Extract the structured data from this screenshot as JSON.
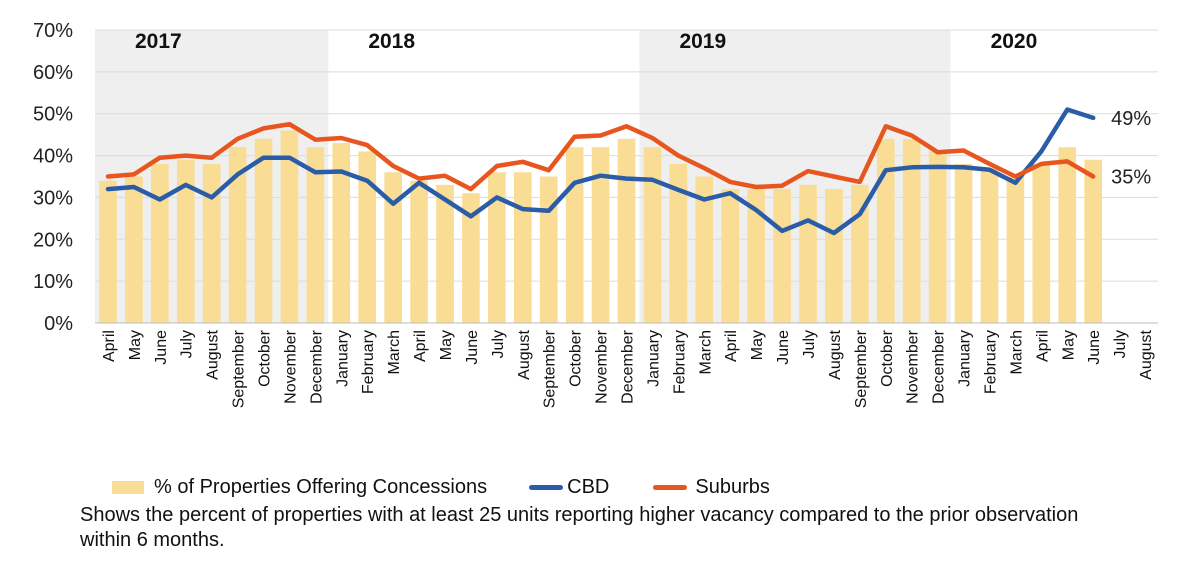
{
  "chart_data": {
    "type": "bar",
    "categories": [
      "April",
      "May",
      "June",
      "July",
      "August",
      "September",
      "October",
      "November",
      "December",
      "January",
      "February",
      "March",
      "April",
      "May",
      "June",
      "July",
      "August",
      "September",
      "October",
      "November",
      "December",
      "January",
      "February",
      "March",
      "April",
      "May",
      "June",
      "July",
      "August",
      "September",
      "October",
      "November",
      "December",
      "January",
      "February",
      "March",
      "April",
      "May",
      "June",
      "July",
      "August"
    ],
    "year_labels": [
      {
        "label": "2017",
        "start_index": 0,
        "end_index": 8,
        "shaded": true
      },
      {
        "label": "2018",
        "start_index": 9,
        "end_index": 20,
        "shaded": false
      },
      {
        "label": "2019",
        "start_index": 21,
        "end_index": 32,
        "shaded": true
      },
      {
        "label": "2020",
        "start_index": 33,
        "end_index": 40,
        "shaded": false
      }
    ],
    "series": [
      {
        "name": "% of Properties Offering Concessions",
        "type": "bar",
        "color": "#f9dd95",
        "values": [
          34,
          35,
          38,
          39,
          38,
          42,
          44,
          46,
          42,
          43,
          41,
          36,
          34,
          33,
          31,
          36,
          36,
          35,
          42,
          42,
          44,
          42,
          38,
          35,
          32,
          32,
          32,
          33,
          32,
          33,
          44,
          44,
          41,
          38,
          37,
          35,
          38,
          42,
          39,
          null,
          null
        ]
      },
      {
        "name": "CBD",
        "type": "line",
        "color": "#2a5ca8",
        "values": [
          32,
          32.5,
          29.5,
          33,
          30,
          35.5,
          39.5,
          39.5,
          36,
          36.2,
          34,
          28.5,
          33.5,
          29.5,
          25.5,
          30,
          27.2,
          26.8,
          33.5,
          35.2,
          34.5,
          34.2,
          31.8,
          29.5,
          31,
          27,
          22,
          24.5,
          21.5,
          26,
          36.5,
          37.2,
          37.3,
          37.2,
          36.6,
          33.5,
          41,
          51,
          49,
          null,
          null
        ]
      },
      {
        "name": "Suburbs",
        "type": "line",
        "color": "#e8561f",
        "values": [
          35,
          35.5,
          39.5,
          40,
          39.5,
          44,
          46.5,
          47.5,
          43.8,
          44.2,
          42.5,
          37.5,
          34.5,
          35.2,
          32,
          37.5,
          38.5,
          36.5,
          44.5,
          44.8,
          47,
          44.2,
          40,
          37,
          33.7,
          32.5,
          32.8,
          36.3,
          35,
          33.7,
          47,
          44.8,
          40.8,
          41.2,
          38,
          35,
          38,
          38.6,
          35,
          null,
          null
        ]
      }
    ],
    "ylim": [
      0,
      70
    ],
    "yticks": [
      0,
      10,
      20,
      30,
      40,
      50,
      60,
      70
    ],
    "ytick_labels": [
      "0%",
      "10%",
      "20%",
      "30%",
      "40%",
      "50%",
      "60%",
      "70%"
    ],
    "end_labels": [
      {
        "series": "CBD",
        "text": "49%"
      },
      {
        "series": "Suburbs",
        "text": "35%"
      }
    ],
    "grid": true,
    "legend_position": "bottom",
    "note": "Shows the percent of properties with at least 25 units reporting higher vacancy compared to the prior observation within 6 months."
  },
  "legend": {
    "bar_label": "% of Properties Offering Concessions",
    "cbd_label": "CBD",
    "suburbs_label": "Suburbs"
  }
}
